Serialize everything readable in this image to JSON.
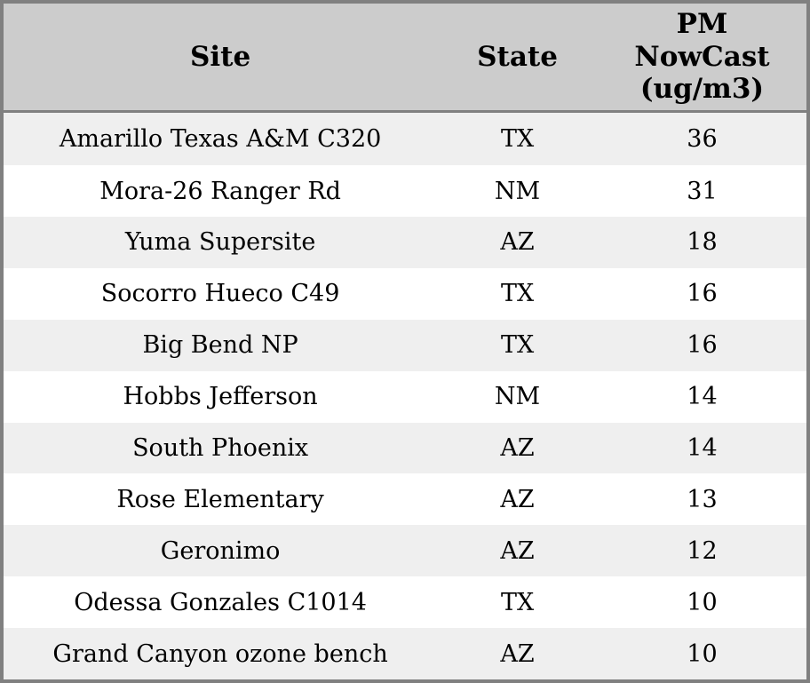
{
  "colors": {
    "header_bg": "#cccccc",
    "row_stripe_bg": "#efefef",
    "row_plain_bg": "#ffffff",
    "border": "#808080",
    "text": "#000000"
  },
  "table": {
    "header": {
      "site": "Site",
      "state": "State",
      "pm": "PM\nNowCast\n(ug/m3)"
    },
    "rows": [
      {
        "site": "Amarillo Texas A&M C320",
        "state": "TX",
        "pm": "36"
      },
      {
        "site": "Mora-26 Ranger Rd",
        "state": "NM",
        "pm": "31"
      },
      {
        "site": "Yuma Supersite",
        "state": "AZ",
        "pm": "18"
      },
      {
        "site": "Socorro Hueco C49",
        "state": "TX",
        "pm": "16"
      },
      {
        "site": "Big Bend NP",
        "state": "TX",
        "pm": "16"
      },
      {
        "site": "Hobbs Jefferson",
        "state": "NM",
        "pm": "14"
      },
      {
        "site": "South Phoenix",
        "state": "AZ",
        "pm": "14"
      },
      {
        "site": "Rose Elementary",
        "state": "AZ",
        "pm": "13"
      },
      {
        "site": "Geronimo",
        "state": "AZ",
        "pm": "12"
      },
      {
        "site": "Odessa Gonzales C1014",
        "state": "TX",
        "pm": "10"
      },
      {
        "site": "Grand Canyon ozone bench",
        "state": "AZ",
        "pm": "10"
      }
    ]
  }
}
